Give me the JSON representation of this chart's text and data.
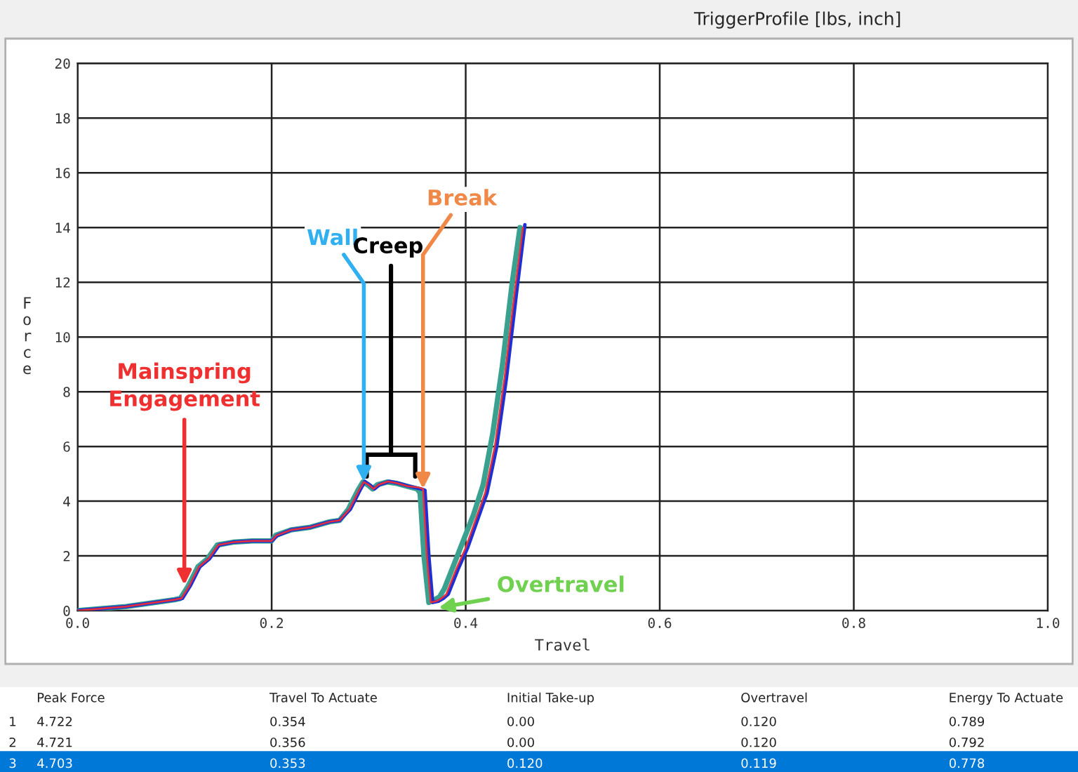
{
  "chart_data": {
    "type": "line",
    "title": "TriggerProfile [lbs, inch]",
    "xlabel": "Travel",
    "ylabel": "Force",
    "xlim": [
      0,
      1.0
    ],
    "xticks": [
      {
        "value": 0,
        "label": "0.0"
      },
      0.2,
      0.4,
      0.6,
      0.8,
      {
        "value": 1.0,
        "label": "1.0"
      }
    ],
    "ylim": [
      0,
      20
    ],
    "yticks": [
      0,
      2,
      4,
      6,
      8,
      10,
      12,
      14,
      16,
      18,
      20
    ],
    "grid": true,
    "marker": "none",
    "line_style": "solid",
    "series": [
      {
        "color": "#e8303a",
        "x": [
          0,
          0.05,
          0.1,
          0.107,
          0.115,
          0.125,
          0.135,
          0.145,
          0.16,
          0.18,
          0.2,
          0.205,
          0.22,
          0.24,
          0.26,
          0.27,
          0.28,
          0.29,
          0.295,
          0.3,
          0.305,
          0.31,
          0.32,
          0.33,
          0.34,
          0.352,
          0.356,
          0.36,
          0.364,
          0.37,
          0.375,
          0.38,
          0.39,
          0.4,
          0.41,
          0.42,
          0.43,
          0.44,
          0.45,
          0.459
        ],
        "values": [
          0,
          0.15,
          0.4,
          0.45,
          0.9,
          1.6,
          1.9,
          2.4,
          2.5,
          2.55,
          2.55,
          2.75,
          2.95,
          3.05,
          3.25,
          3.3,
          3.7,
          4.4,
          4.7,
          4.6,
          4.45,
          4.6,
          4.72,
          4.65,
          4.55,
          4.5,
          4.45,
          2.0,
          0.3,
          0.35,
          0.45,
          0.6,
          1.5,
          2.3,
          3.3,
          4.3,
          6.0,
          8.5,
          11.5,
          14.0
        ]
      },
      {
        "color": "#2030d0",
        "x": [
          0,
          0.05,
          0.1,
          0.108,
          0.116,
          0.126,
          0.136,
          0.146,
          0.16,
          0.18,
          0.2,
          0.206,
          0.22,
          0.24,
          0.26,
          0.27,
          0.281,
          0.291,
          0.296,
          0.301,
          0.306,
          0.311,
          0.321,
          0.331,
          0.341,
          0.354,
          0.358,
          0.362,
          0.366,
          0.372,
          0.377,
          0.382,
          0.392,
          0.402,
          0.412,
          0.422,
          0.432,
          0.442,
          0.452,
          0.461
        ],
        "values": [
          0,
          0.15,
          0.4,
          0.45,
          0.9,
          1.6,
          1.9,
          2.4,
          2.5,
          2.55,
          2.55,
          2.75,
          2.95,
          3.05,
          3.25,
          3.3,
          3.7,
          4.4,
          4.72,
          4.6,
          4.45,
          4.6,
          4.72,
          4.65,
          4.55,
          4.45,
          4.4,
          2.0,
          0.3,
          0.35,
          0.45,
          0.6,
          1.5,
          2.3,
          3.3,
          4.3,
          6.0,
          8.5,
          11.5,
          14.1
        ]
      },
      {
        "color": "#3aa090",
        "x": [
          0,
          0.05,
          0.1,
          0.106,
          0.114,
          0.124,
          0.134,
          0.144,
          0.16,
          0.18,
          0.2,
          0.204,
          0.22,
          0.24,
          0.26,
          0.27,
          0.279,
          0.289,
          0.294,
          0.299,
          0.304,
          0.309,
          0.319,
          0.329,
          0.339,
          0.35,
          0.353,
          0.357,
          0.362,
          0.368,
          0.373,
          0.378,
          0.388,
          0.398,
          0.408,
          0.418,
          0.428,
          0.438,
          0.448,
          0.456
        ],
        "values": [
          0,
          0.15,
          0.4,
          0.45,
          0.9,
          1.6,
          1.9,
          2.4,
          2.5,
          2.55,
          2.55,
          2.75,
          2.95,
          3.05,
          3.25,
          3.3,
          3.7,
          4.4,
          4.7,
          4.6,
          4.45,
          4.6,
          4.7,
          4.65,
          4.55,
          4.45,
          4.3,
          2.0,
          0.3,
          0.4,
          0.5,
          0.8,
          1.7,
          2.6,
          3.5,
          4.6,
          6.5,
          9.0,
          12.0,
          14.0
        ]
      }
    ],
    "annotations": [
      {
        "text": "Mainspring\nEngagement",
        "x": 0.11,
        "y": 0.8
      },
      {
        "text": "Wall",
        "x": 0.295,
        "y": 4.7
      },
      "Creep",
      {
        "text": "Break",
        "x": 0.356,
        "y": 4.45
      },
      {
        "text": "Overtravel",
        "x": 0.372,
        "y": 0.1
      },
      "Peak Force",
      "Travel To Actuate",
      "Initial Take-up",
      "Overtravel",
      "Energy To Actuate",
      "1",
      "4.722",
      "0.354",
      "0.00",
      "0.120",
      "0.789",
      "2",
      "4.721",
      "0.356",
      "0.00",
      "0.120",
      "0.792",
      "3",
      "4.703",
      "0.353",
      "0.120",
      "0.119",
      "0.778"
    ]
  }
}
